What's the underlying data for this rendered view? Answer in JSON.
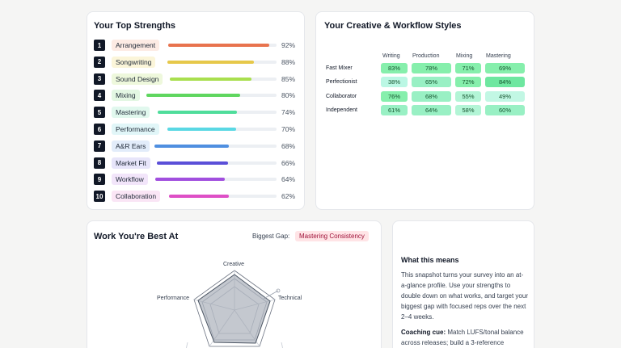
{
  "strengths": {
    "title": "Your Top Strengths",
    "items": [
      {
        "rank": "1",
        "label": "Arrangement",
        "percent": "92%",
        "value": 92,
        "bar": "#e8734e",
        "pill": "#fdebe4"
      },
      {
        "rank": "2",
        "label": "Songwriting",
        "percent": "88%",
        "value": 88,
        "bar": "#e6c84a",
        "pill": "#fbf5d9"
      },
      {
        "rank": "3",
        "label": "Sound Design",
        "percent": "85%",
        "value": 85,
        "bar": "#a9df4f",
        "pill": "#eef8dc"
      },
      {
        "rank": "4",
        "label": "Mixing",
        "percent": "80%",
        "value": 80,
        "bar": "#5fd65f",
        "pill": "#e3f7e3"
      },
      {
        "rank": "5",
        "label": "Mastering",
        "percent": "74%",
        "value": 74,
        "bar": "#4fdd9b",
        "pill": "#e1f8ee"
      },
      {
        "rank": "6",
        "label": "Performance",
        "percent": "70%",
        "value": 70,
        "bar": "#5ad8e4",
        "pill": "#e1f6f8"
      },
      {
        "rank": "7",
        "label": "A&R Ears",
        "percent": "68%",
        "value": 68,
        "bar": "#4f8fe0",
        "pill": "#e2ecfa"
      },
      {
        "rank": "8",
        "label": "Market Fit",
        "percent": "66%",
        "value": 66,
        "bar": "#5b4fd8",
        "pill": "#e7e5fa"
      },
      {
        "rank": "9",
        "label": "Workflow",
        "percent": "64%",
        "value": 64,
        "bar": "#a14fde",
        "pill": "#f2e5fa"
      },
      {
        "rank": "10",
        "label": "Collaboration",
        "percent": "62%",
        "value": 62,
        "bar": "#de4fc6",
        "pill": "#fae5f5"
      }
    ]
  },
  "styles": {
    "title": "Your Creative & Workflow Styles",
    "columns": [
      "Writing",
      "Production",
      "Mixing",
      "Mastering"
    ],
    "rows": [
      {
        "label": "Fast Mixer",
        "cells": [
          {
            "text": "83%",
            "color": "#86efac"
          },
          {
            "text": "78%",
            "color": "#86efac"
          },
          {
            "text": "71%",
            "color": "#86efac"
          },
          {
            "text": "69%",
            "color": "#86efac"
          }
        ]
      },
      {
        "label": "Perfectionist",
        "cells": [
          {
            "text": "38%",
            "color": "#bbf7e4"
          },
          {
            "text": "65%",
            "color": "#99f0c4"
          },
          {
            "text": "72%",
            "color": "#86efac"
          },
          {
            "text": "84%",
            "color": "#6ee7a0"
          }
        ]
      },
      {
        "label": "Collaborator",
        "cells": [
          {
            "text": "76%",
            "color": "#86efac"
          },
          {
            "text": "68%",
            "color": "#99f0c4"
          },
          {
            "text": "55%",
            "color": "#b3f5d6"
          },
          {
            "text": "49%",
            "color": "#c2f7e4"
          }
        ]
      },
      {
        "label": "Independent",
        "cells": [
          {
            "text": "61%",
            "color": "#99f0c4"
          },
          {
            "text": "64%",
            "color": "#99f0c4"
          },
          {
            "text": "58%",
            "color": "#b3f5d6"
          },
          {
            "text": "60%",
            "color": "#99f0c4"
          }
        ]
      }
    ]
  },
  "work": {
    "title": "Work You're Best At",
    "gap_label": "Biggest Gap:",
    "gap_value": "Mastering Consistency",
    "radar_labels": {
      "top": "Creative",
      "right": "Technical",
      "left": "Performance"
    }
  },
  "info": {
    "title": "What this means",
    "body": "This snapshot turns your survey into an at-a-glance profile. Use your strengths to double down on what works, and target your biggest gap with focused reps over the next 2–4 weeks.",
    "cue_label": "Coaching cue:",
    "cue_text": " Match LUFS/tonal balance across releases; build a 3-reference"
  }
}
